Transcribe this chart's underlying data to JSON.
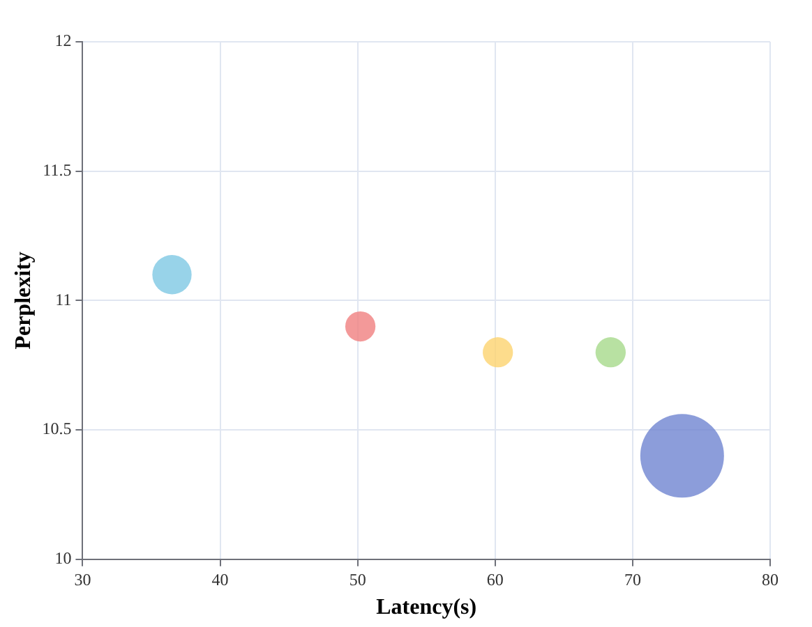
{
  "chart_data": {
    "type": "bubble",
    "xlabel": "Latency(s)",
    "ylabel": "Perplexity",
    "x": [
      36.5,
      50.2,
      60.2,
      68.4,
      73.6
    ],
    "values": [
      11.1,
      10.9,
      10.8,
      10.8,
      10.4
    ],
    "sizes": [
      0.22,
      0.13,
      0.13,
      0.13,
      1
    ],
    "colors": [
      "#7ec8e3",
      "#f07f7f",
      "#fdd36f",
      "#a6d98b",
      "#6f84d1"
    ],
    "xlim": [
      30,
      80
    ],
    "ylim": [
      10,
      12
    ],
    "xticks": [
      30,
      40,
      50,
      60,
      70,
      80
    ],
    "yticks": [
      10,
      10.5,
      11,
      11.5,
      12
    ],
    "grid": true
  }
}
